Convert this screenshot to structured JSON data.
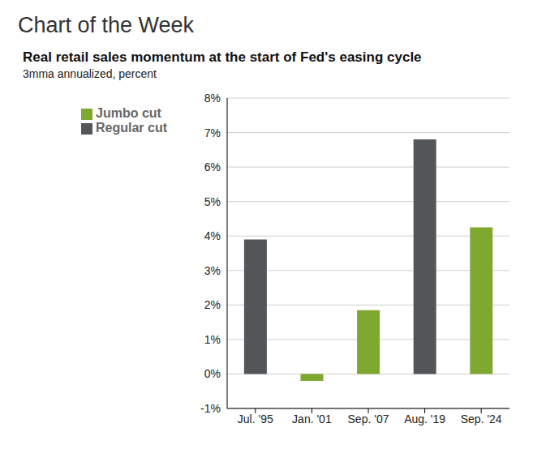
{
  "header": "Chart of the Week",
  "chart_data": {
    "type": "bar",
    "title": "Real retail sales momentum at the start of Fed's easing cycle",
    "subtitle": "3mma annualized, percent",
    "categories": [
      "Jul. '95",
      "Jan. '01",
      "Sep. '07",
      "Aug. '19",
      "Sep. '24"
    ],
    "series": [
      {
        "name": "Regular cut",
        "color": "#53575a",
        "values": [
          3.9,
          null,
          null,
          6.8,
          null
        ]
      },
      {
        "name": "Jumbo cut",
        "color": "#7ea82f",
        "values": [
          null,
          -0.2,
          1.85,
          null,
          4.25
        ]
      }
    ],
    "stacked": true,
    "ylim": [
      -1,
      8
    ],
    "yticks": [
      {
        "value": -1,
        "label": "-1%"
      },
      {
        "value": 0,
        "label": "0%"
      },
      {
        "value": 1,
        "label": "1%"
      },
      {
        "value": 2,
        "label": "2%"
      },
      {
        "value": 3,
        "label": "3%"
      },
      {
        "value": 4,
        "label": "4%"
      },
      {
        "value": 5,
        "label": "5%"
      },
      {
        "value": 6,
        "label": "6%"
      },
      {
        "value": 7,
        "label": "7%"
      },
      {
        "value": 8,
        "label": "8%"
      }
    ],
    "grid": true,
    "legend": "upper left"
  }
}
